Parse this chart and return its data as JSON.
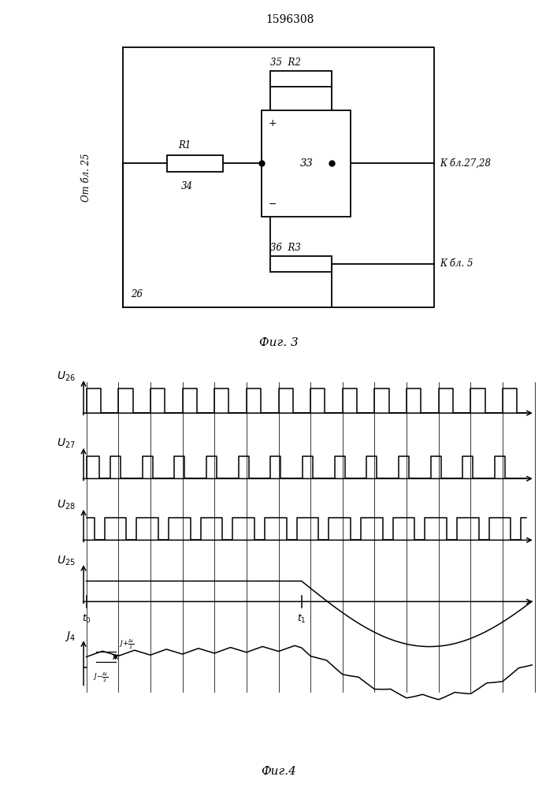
{
  "title_patent": "1596308",
  "fig3_caption": "Фиг. 3",
  "fig4_caption": "Фиг.4",
  "bg_color": "#ffffff",
  "circuit": {
    "label_left": "От бл. 25",
    "label_26": "26",
    "label_R1": "R1",
    "label_34": "34",
    "label_33": "33",
    "label_35_R2": "35  R2",
    "label_36_R3": "36  R3",
    "label_right1": "К бл.27,28",
    "label_right2": "К бл. 5"
  }
}
